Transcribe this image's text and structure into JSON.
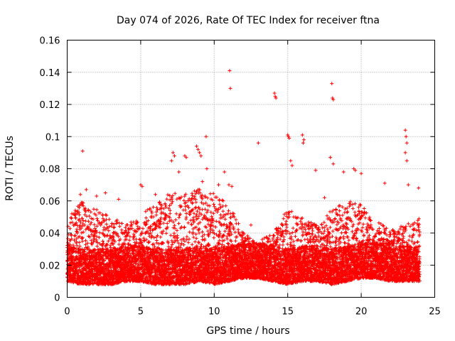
{
  "chart_data": {
    "type": "scatter",
    "title": "Day 074 of 2026, Rate Of TEC Index for receiver ftna",
    "xlabel": "GPS time / hours",
    "ylabel": "ROTI / TECUs",
    "xlim": [
      0,
      25
    ],
    "ylim": [
      0,
      0.16
    ],
    "xticks": [
      0,
      5,
      10,
      15,
      20,
      25
    ],
    "xtick_labels": [
      "0",
      "5",
      "10",
      "15",
      "20",
      "25"
    ],
    "yticks": [
      0,
      0.02,
      0.04,
      0.06,
      0.08,
      0.1,
      0.12,
      0.14,
      0.16
    ],
    "ytick_labels": [
      "0",
      "0.02",
      "0.04",
      "0.06",
      "0.08",
      "0.1",
      "0.12",
      "0.14",
      "0.16"
    ],
    "grid": true,
    "marker": "+",
    "color": "#ff0000",
    "series_name": "ROTI",
    "bulk_envelope": {
      "description": "dense band of ROTI samples, typical lower/upper values per hour",
      "x": [
        0,
        1,
        2,
        3,
        4,
        5,
        6,
        7,
        8,
        9,
        10,
        11,
        12,
        13,
        14,
        15,
        16,
        17,
        18,
        19,
        20,
        21,
        22,
        23,
        24
      ],
      "low": [
        0.01,
        0.008,
        0.008,
        0.008,
        0.01,
        0.01,
        0.008,
        0.008,
        0.008,
        0.01,
        0.008,
        0.01,
        0.012,
        0.012,
        0.01,
        0.008,
        0.01,
        0.01,
        0.008,
        0.01,
        0.012,
        0.012,
        0.01,
        0.01,
        0.01
      ],
      "high": [
        0.05,
        0.06,
        0.055,
        0.05,
        0.045,
        0.052,
        0.058,
        0.065,
        0.065,
        0.068,
        0.065,
        0.058,
        0.04,
        0.035,
        0.04,
        0.055,
        0.05,
        0.045,
        0.055,
        0.06,
        0.058,
        0.048,
        0.042,
        0.045,
        0.05
      ]
    },
    "outliers": [
      [
        1.05,
        0.091
      ],
      [
        0.9,
        0.064
      ],
      [
        1.3,
        0.067
      ],
      [
        2.6,
        0.065
      ],
      [
        5.0,
        0.07
      ],
      [
        5.1,
        0.069
      ],
      [
        7.2,
        0.09
      ],
      [
        7.3,
        0.088
      ],
      [
        7.1,
        0.085
      ],
      [
        7.6,
        0.078
      ],
      [
        8.0,
        0.088
      ],
      [
        8.1,
        0.087
      ],
      [
        8.8,
        0.094
      ],
      [
        8.9,
        0.092
      ],
      [
        9.0,
        0.09
      ],
      [
        9.1,
        0.088
      ],
      [
        9.45,
        0.1
      ],
      [
        9.5,
        0.08
      ],
      [
        9.2,
        0.072
      ],
      [
        10.7,
        0.078
      ],
      [
        11.0,
        0.07
      ],
      [
        11.05,
        0.141
      ],
      [
        11.1,
        0.13
      ],
      [
        11.2,
        0.069
      ],
      [
        13.0,
        0.096
      ],
      [
        14.1,
        0.127
      ],
      [
        14.15,
        0.125
      ],
      [
        14.2,
        0.124
      ],
      [
        15.0,
        0.101
      ],
      [
        15.05,
        0.1
      ],
      [
        15.1,
        0.099
      ],
      [
        15.2,
        0.085
      ],
      [
        15.3,
        0.082
      ],
      [
        16.0,
        0.101
      ],
      [
        16.1,
        0.098
      ],
      [
        16.05,
        0.096
      ],
      [
        16.9,
        0.079
      ],
      [
        18.0,
        0.133
      ],
      [
        18.05,
        0.124
      ],
      [
        18.1,
        0.123
      ],
      [
        17.9,
        0.087
      ],
      [
        18.1,
        0.083
      ],
      [
        18.8,
        0.078
      ],
      [
        19.5,
        0.08
      ],
      [
        19.6,
        0.079
      ],
      [
        20.0,
        0.077
      ],
      [
        21.6,
        0.071
      ],
      [
        23.0,
        0.104
      ],
      [
        23.05,
        0.1
      ],
      [
        23.1,
        0.096
      ],
      [
        23.0,
        0.09
      ],
      [
        23.1,
        0.085
      ],
      [
        23.2,
        0.07
      ],
      [
        23.9,
        0.068
      ],
      [
        2.0,
        0.063
      ],
      [
        3.5,
        0.061
      ],
      [
        6.0,
        0.064
      ],
      [
        10.3,
        0.07
      ],
      [
        12.5,
        0.045
      ],
      [
        17.5,
        0.062
      ]
    ]
  }
}
